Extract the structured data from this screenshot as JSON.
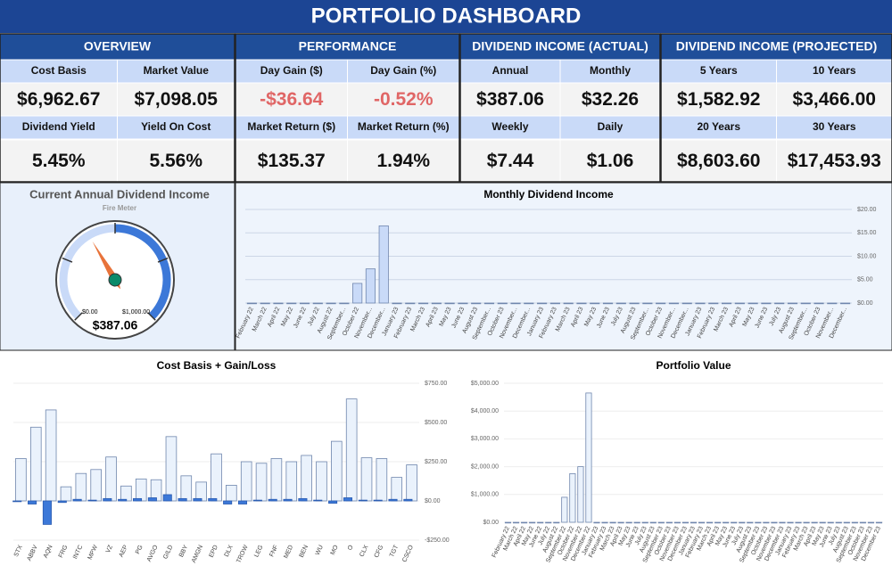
{
  "header": {
    "title": "PORTFOLIO DASHBOARD"
  },
  "kpi_groups": [
    {
      "title": "OVERVIEW",
      "items": [
        {
          "label": "Cost Basis",
          "value": "$6,962.67"
        },
        {
          "label": "Market Value",
          "value": "$7,098.05"
        },
        {
          "label": "Dividend Yield",
          "value": "5.45%"
        },
        {
          "label": "Yield On Cost",
          "value": "5.56%"
        }
      ]
    },
    {
      "title": "PERFORMANCE",
      "items": [
        {
          "label": "Day Gain ($)",
          "value": "-$36.64",
          "color": "#e06666"
        },
        {
          "label": "Day Gain (%)",
          "value": "-0.52%",
          "color": "#e06666"
        },
        {
          "label": "Market Return ($)",
          "value": "$135.37"
        },
        {
          "label": "Market Return (%)",
          "value": "1.94%"
        }
      ]
    },
    {
      "title": "DIVIDEND INCOME (ACTUAL)",
      "items": [
        {
          "label": "Annual",
          "value": "$387.06"
        },
        {
          "label": "Monthly",
          "value": "$32.26"
        },
        {
          "label": "Weekly",
          "value": "$7.44"
        },
        {
          "label": "Daily",
          "value": "$1.06"
        }
      ]
    },
    {
      "title": "DIVIDEND INCOME (PROJECTED)",
      "items": [
        {
          "label": "5 Years",
          "value": "$1,582.92"
        },
        {
          "label": "10 Years",
          "value": "$3,466.00"
        },
        {
          "label": "20 Years",
          "value": "$8,603.60"
        },
        {
          "label": "30 Years",
          "value": "$17,453.93"
        }
      ]
    }
  ],
  "chart_data": [
    {
      "type": "gauge",
      "title": "Current Annual Dividend Income",
      "subtitle": "Fire Meter",
      "value": 387.06,
      "value_label": "$387.06",
      "min": 0,
      "max": 1000,
      "min_label": "$0.00",
      "max_label": "$1,000.00",
      "color": "#3c78d8"
    },
    {
      "type": "bar",
      "title": "Monthly Dividend Income",
      "color": "#c9daf8",
      "categories": [
        "February 22",
        "March 22",
        "April 22",
        "May 22",
        "June 22",
        "July 22",
        "August 22",
        "September...",
        "October 22",
        "November...",
        "December...",
        "January 23",
        "February 23",
        "March 23",
        "April 23",
        "May 23",
        "June 23",
        "August 23",
        "September...",
        "October 23",
        "November...",
        "December...",
        "January 23",
        "February 23",
        "March 23",
        "April 23",
        "May 23",
        "June 23",
        "July 23",
        "August 23",
        "September...",
        "October 23",
        "November...",
        "December...",
        "January 23",
        "February 23",
        "March 23",
        "April 23",
        "May 23",
        "June 23",
        "July 23",
        "August 23",
        "September...",
        "October 23",
        "November...",
        "December..."
      ],
      "values": [
        0,
        0,
        0,
        0,
        0,
        0,
        0,
        0,
        4.2,
        7.3,
        16.5,
        0,
        0,
        0,
        0,
        0,
        0,
        0,
        0,
        0,
        0,
        0,
        0,
        0,
        0,
        0,
        0,
        0,
        0,
        0,
        0,
        0,
        0,
        0,
        0,
        0,
        0,
        0,
        0,
        0,
        0,
        0,
        0,
        0,
        0,
        0
      ],
      "ylim": [
        0,
        20
      ],
      "yticks": [
        {
          "value": 0,
          "label": "$0.00"
        },
        {
          "value": 5,
          "label": "$5.00"
        },
        {
          "value": 10,
          "label": "$10.00"
        },
        {
          "value": 15,
          "label": "$15.00"
        },
        {
          "value": 20,
          "label": "$20.00"
        }
      ],
      "grid": true
    },
    {
      "type": "bar",
      "title": "Cost Basis + Gain/Loss",
      "categories": [
        "STX",
        "ABBV",
        "AQN",
        "FRG",
        "INTC",
        "MPW",
        "VZ",
        "AEP",
        "PG",
        "AVGO",
        "GILD",
        "BBY",
        "AMGN",
        "EPD",
        "DLX",
        "TROW",
        "LEG",
        "FNF",
        "MED",
        "BEN",
        "WU",
        "MO",
        "O",
        "CLX",
        "CFG",
        "TGT",
        "CSCO"
      ],
      "series": [
        {
          "color": "#eaf2fc",
          "values": [
            270,
            470,
            580,
            90,
            175,
            200,
            280,
            95,
            140,
            135,
            410,
            160,
            120,
            300,
            100,
            250,
            240,
            270,
            250,
            290,
            250,
            380,
            650,
            275,
            270,
            150,
            230
          ]
        },
        {
          "color": "#3c78d8",
          "values": [
            -5,
            -20,
            -150,
            -10,
            10,
            5,
            15,
            10,
            15,
            20,
            40,
            15,
            15,
            15,
            -20,
            -20,
            5,
            10,
            10,
            15,
            5,
            -15,
            20,
            5,
            5,
            10,
            10
          ]
        }
      ],
      "ylim": [
        -250,
        750
      ],
      "yticks": [
        {
          "value": -250,
          "label": "-$250.00"
        },
        {
          "value": 0,
          "label": "$0.00"
        },
        {
          "value": 250,
          "label": "$250.00"
        },
        {
          "value": 500,
          "label": "$500.00"
        },
        {
          "value": 750,
          "label": "$750.00"
        }
      ],
      "grid": false
    },
    {
      "type": "bar",
      "title": "Portfolio Value",
      "color": "#eaf2fc",
      "categories": [
        "February 22",
        "March 22",
        "April 22",
        "May 22",
        "June 22",
        "July 22",
        "August 22",
        "September 22",
        "October 22",
        "November 22",
        "December 22",
        "January 23",
        "February 23",
        "March 23",
        "April 23",
        "May 23",
        "June 23",
        "July 23",
        "August 23",
        "September 23",
        "October 23",
        "November 23",
        "December 23",
        "January 23",
        "February 23",
        "March 23",
        "April 23",
        "May 23",
        "June 23",
        "July 23",
        "August 23",
        "September 23",
        "October 23",
        "November 23",
        "December 23",
        "January 23",
        "February 23",
        "March 23",
        "April 23",
        "May 23",
        "June 23",
        "July 23",
        "August 23",
        "September 23",
        "October 23",
        "November 23",
        "December 23"
      ],
      "values": [
        0,
        0,
        0,
        0,
        0,
        0,
        0,
        900,
        1750,
        2000,
        4650,
        0,
        0,
        0,
        0,
        0,
        0,
        0,
        0,
        0,
        0,
        0,
        0,
        0,
        0,
        0,
        0,
        0,
        0,
        0,
        0,
        0,
        0,
        0,
        0,
        0,
        0,
        0,
        0,
        0,
        0,
        0,
        0,
        0,
        0,
        0,
        0
      ],
      "ylim": [
        0,
        5000
      ],
      "yticks": [
        {
          "value": 0,
          "label": "$0.00"
        },
        {
          "value": 1000,
          "label": "$1,000.00"
        },
        {
          "value": 2000,
          "label": "$2,000.00"
        },
        {
          "value": 3000,
          "label": "$3,000.00"
        },
        {
          "value": 4000,
          "label": "$4,000.00"
        },
        {
          "value": 5000,
          "label": "$5,000.00"
        }
      ],
      "grid": false
    }
  ]
}
